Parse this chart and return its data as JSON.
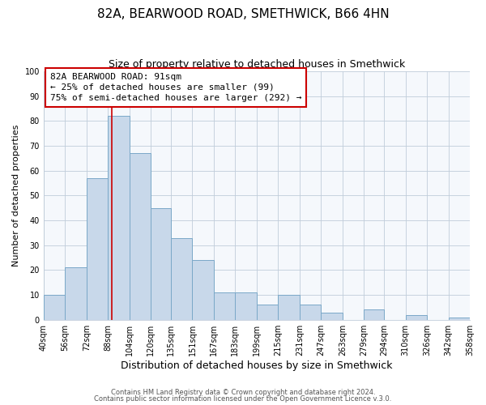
{
  "title": "82A, BEARWOOD ROAD, SMETHWICK, B66 4HN",
  "subtitle": "Size of property relative to detached houses in Smethwick",
  "xlabel": "Distribution of detached houses by size in Smethwick",
  "ylabel": "Number of detached properties",
  "bin_labels": [
    "40sqm",
    "56sqm",
    "72sqm",
    "88sqm",
    "104sqm",
    "120sqm",
    "135sqm",
    "151sqm",
    "167sqm",
    "183sqm",
    "199sqm",
    "215sqm",
    "231sqm",
    "247sqm",
    "263sqm",
    "279sqm",
    "294sqm",
    "310sqm",
    "326sqm",
    "342sqm",
    "358sqm"
  ],
  "bar_values": [
    10,
    21,
    57,
    82,
    67,
    45,
    33,
    24,
    11,
    11,
    6,
    10,
    6,
    3,
    0,
    4,
    0,
    2,
    0,
    1
  ],
  "bin_edges": [
    40,
    56,
    72,
    88,
    104,
    120,
    135,
    151,
    167,
    183,
    199,
    215,
    231,
    247,
    263,
    279,
    294,
    310,
    326,
    342,
    358
  ],
  "bar_color": "#c8d8ea",
  "bar_edge_color": "#7aa8c8",
  "vline_x": 91,
  "vline_color": "#cc0000",
  "annotation_title": "82A BEARWOOD ROAD: 91sqm",
  "annotation_line1": "← 25% of detached houses are smaller (99)",
  "annotation_line2": "75% of semi-detached houses are larger (292) →",
  "annotation_box_facecolor": "#ffffff",
  "annotation_box_edgecolor": "#cc0000",
  "ylim": [
    0,
    100
  ],
  "yticks": [
    0,
    10,
    20,
    30,
    40,
    50,
    60,
    70,
    80,
    90,
    100
  ],
  "footer1": "Contains HM Land Registry data © Crown copyright and database right 2024.",
  "footer2": "Contains public sector information licensed under the Open Government Licence v.3.0.",
  "bg_color": "#ffffff",
  "plot_bg_color": "#f5f8fc",
  "grid_color": "#c0ccda",
  "title_fontsize": 11,
  "subtitle_fontsize": 9,
  "ylabel_fontsize": 8,
  "xlabel_fontsize": 9,
  "tick_fontsize": 7,
  "footer_fontsize": 6,
  "ann_fontsize": 8
}
